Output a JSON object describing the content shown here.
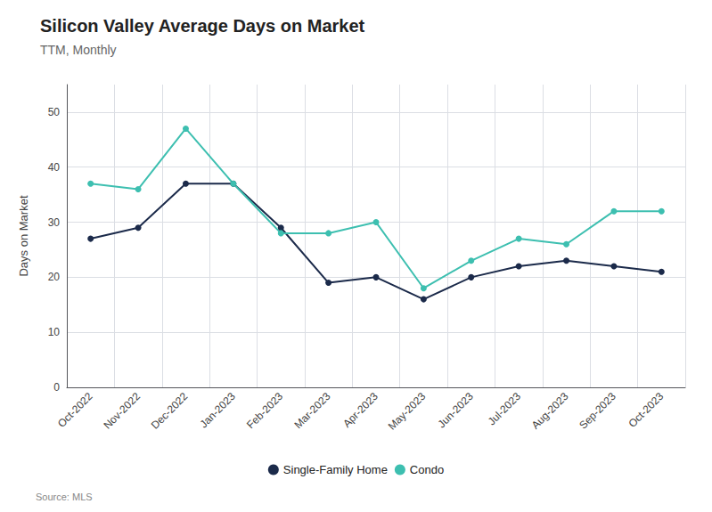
{
  "chart_data": {
    "type": "line",
    "title": "Silicon Valley Average Days on Market",
    "subtitle": "TTM, Monthly",
    "ylabel": "Days on Market",
    "source": "Source: MLS",
    "categories": [
      "Oct-2022",
      "Nov-2022",
      "Dec-2022",
      "Jan-2023",
      "Feb-2023",
      "Mar-2023",
      "Apr-2023",
      "May-2023",
      "Jun-2023",
      "Jul-2023",
      "Aug-2023",
      "Sep-2023",
      "Oct-2023"
    ],
    "series": [
      {
        "name": "Single-Family Home",
        "color": "#1b2a4a",
        "values": [
          27,
          29,
          37,
          37,
          29,
          19,
          20,
          16,
          20,
          22,
          23,
          22,
          21
        ]
      },
      {
        "name": "Condo",
        "color": "#3dbfb0",
        "values": [
          37,
          36,
          47,
          37,
          28,
          28,
          30,
          18,
          23,
          27,
          26,
          32,
          32
        ]
      }
    ],
    "ylim": [
      0,
      55
    ],
    "yticks": [
      0,
      10,
      20,
      30,
      40,
      50
    ],
    "grid": true,
    "legend": "bottom",
    "marker": "circle"
  }
}
